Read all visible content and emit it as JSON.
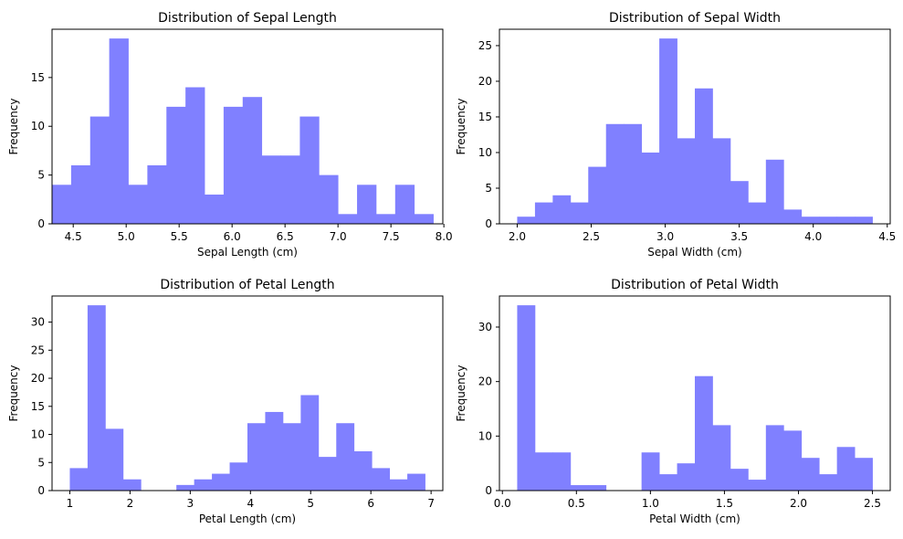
{
  "chart_data": [
    {
      "type": "bar",
      "title": "Distribution of Sepal Length",
      "xlabel": "Sepal Length (cm)",
      "ylabel": "Frequency",
      "xlim": [
        4.3,
        7.99
      ],
      "ylim": [
        0,
        19.95
      ],
      "xticks": [
        "4.5",
        "5.0",
        "5.5",
        "6.0",
        "6.5",
        "7.0",
        "7.5",
        "8.0"
      ],
      "yticks": [
        "0",
        "5",
        "10",
        "15"
      ],
      "bin_start": 4.3,
      "bin_width": 0.18,
      "values": [
        4,
        6,
        11,
        19,
        4,
        6,
        12,
        14,
        3,
        12,
        13,
        7,
        7,
        11,
        5,
        1,
        4,
        1,
        4,
        1
      ],
      "color": "#8080ff",
      "grid": false
    },
    {
      "type": "bar",
      "title": "Distribution of Sepal Width",
      "xlabel": "Sepal Width (cm)",
      "ylabel": "Frequency",
      "xlim": [
        1.88,
        4.52
      ],
      "ylim": [
        0,
        27.3
      ],
      "xticks": [
        "2.0",
        "2.5",
        "3.0",
        "3.5",
        "4.0",
        "4.5"
      ],
      "yticks": [
        "0",
        "5",
        "10",
        "15",
        "20",
        "25"
      ],
      "bin_start": 2.0,
      "bin_width": 0.12,
      "values": [
        1,
        3,
        4,
        3,
        8,
        14,
        14,
        10,
        26,
        12,
        19,
        12,
        6,
        3,
        9,
        2,
        1,
        1,
        1,
        1
      ],
      "color": "#8080ff",
      "grid": false
    },
    {
      "type": "bar",
      "title": "Distribution of Petal Length",
      "xlabel": "Petal Length (cm)",
      "ylabel": "Frequency",
      "xlim": [
        0.705,
        7.195
      ],
      "ylim": [
        0,
        34.65
      ],
      "xticks": [
        "1",
        "2",
        "3",
        "4",
        "5",
        "6",
        "7"
      ],
      "yticks": [
        "0",
        "5",
        "10",
        "15",
        "20",
        "25",
        "30"
      ],
      "bin_start": 1.0,
      "bin_width": 0.295,
      "values": [
        4,
        33,
        11,
        2,
        0,
        0,
        1,
        2,
        3,
        5,
        12,
        14,
        12,
        17,
        6,
        12,
        7,
        4,
        2,
        3
      ],
      "color": "#8080ff",
      "grid": false
    },
    {
      "type": "bar",
      "title": "Distribution of Petal Width",
      "xlabel": "Petal Width (cm)",
      "ylabel": "Frequency",
      "xlim": [
        -0.02,
        2.62
      ],
      "ylim": [
        0,
        35.7
      ],
      "xticks": [
        "0.0",
        "0.5",
        "1.0",
        "1.5",
        "2.0",
        "2.5"
      ],
      "yticks": [
        "0",
        "10",
        "20",
        "30"
      ],
      "bin_start": 0.1,
      "bin_width": 0.12,
      "values": [
        34,
        7,
        7,
        1,
        1,
        0,
        0,
        7,
        3,
        5,
        21,
        12,
        4,
        2,
        12,
        11,
        6,
        3,
        8,
        6
      ],
      "color": "#8080ff",
      "grid": false
    }
  ]
}
